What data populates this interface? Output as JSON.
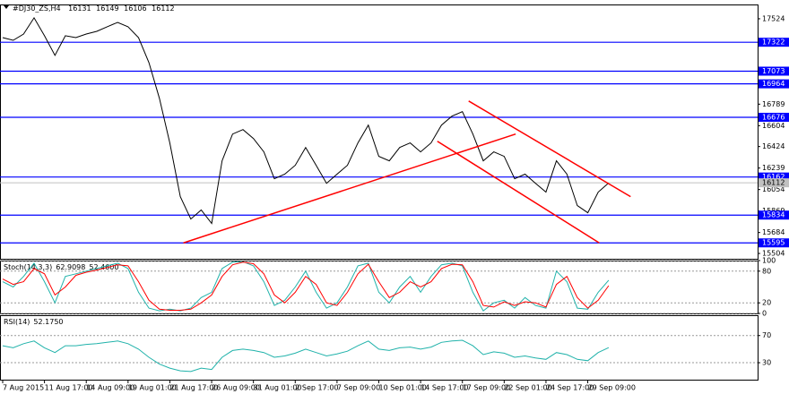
{
  "header": {
    "symbol": "#DJ30_ZS,H4",
    "ohlc": [
      16131,
      16149,
      16106,
      16112
    ]
  },
  "chart_data": [
    {
      "type": "line",
      "x": [
        0,
        1,
        2,
        3,
        4,
        5,
        6,
        7,
        8,
        9,
        10,
        11,
        12,
        13,
        14,
        15,
        16,
        17,
        18,
        19,
        20,
        21,
        22,
        23,
        24,
        25,
        26,
        27,
        28,
        29,
        30,
        31,
        32,
        33,
        34,
        35,
        36,
        37,
        38,
        39,
        40,
        41,
        42,
        43,
        44,
        45,
        46,
        47,
        48,
        49,
        50,
        51,
        52,
        53,
        54,
        55,
        56,
        57,
        58
      ],
      "values": [
        17362,
        17339,
        17393,
        17532,
        17378,
        17209,
        17378,
        17362,
        17393,
        17416,
        17455,
        17493,
        17455,
        17362,
        17147,
        16839,
        16455,
        15993,
        15800,
        15878,
        15762,
        16301,
        16532,
        16570,
        16493,
        16378,
        16147,
        16186,
        16263,
        16416,
        16263,
        16108,
        16186,
        16263,
        16455,
        16609,
        16340,
        16301,
        16416,
        16455,
        16378,
        16455,
        16609,
        16686,
        16724,
        16532,
        16301,
        16378,
        16340,
        16147,
        16186,
        16108,
        16032,
        16301,
        16186,
        15916,
        15854,
        16032,
        16112
      ],
      "color": "#000000",
      "xlim": [
        0,
        72
      ],
      "ylim": [
        15458,
        17647
      ],
      "yticks": [
        17524,
        16789,
        16604,
        16424,
        16239,
        16054,
        15869,
        15684,
        15504
      ],
      "levels": [
        17322,
        17073,
        16964,
        16676,
        16162,
        15834,
        15595
      ],
      "level_color": "#0000ff",
      "trendlines": [
        {
          "x": [
            17.3,
            49.1
          ],
          "y": [
            15595,
            16532
          ]
        },
        {
          "x": [
            44.6,
            60.1
          ],
          "y": [
            16816,
            15993
          ]
        },
        {
          "x": [
            41.6,
            57.1
          ],
          "y": [
            16470,
            15595
          ]
        }
      ],
      "trendline_color": "#ff0000",
      "xticks": [
        {
          "value": 0,
          "label": "7 Aug 2015"
        },
        {
          "value": 4,
          "label": "11 Aug 17:00"
        },
        {
          "value": 8,
          "label": "14 Aug 09:00"
        },
        {
          "value": 12,
          "label": "19 Aug 01:00"
        },
        {
          "value": 16,
          "label": "21 Aug 17:00"
        },
        {
          "value": 20,
          "label": "26 Aug 09:00"
        },
        {
          "value": 24,
          "label": "31 Aug 01:00"
        },
        {
          "value": 28,
          "label": "2 Sep 17:00"
        },
        {
          "value": 32,
          "label": "7 Sep 09:00"
        },
        {
          "value": 36,
          "label": "10 Sep 01:00"
        },
        {
          "value": 40,
          "label": "14 Sep 17:00"
        },
        {
          "value": 44,
          "label": "17 Sep 09:00"
        },
        {
          "value": 48,
          "label": "22 Sep 01:00"
        },
        {
          "value": 52,
          "label": "24 Sep 17:00"
        },
        {
          "value": 56,
          "label": "29 Sep 09:00"
        }
      ]
    },
    {
      "type": "line",
      "title": "Stoch(14,3,3)",
      "readout": [
        62.9098,
        {
          "value": 52.46,
          "label": "52.4600"
        }
      ],
      "x": [
        0,
        1,
        2,
        3,
        4,
        5,
        6,
        7,
        8,
        9,
        10,
        11,
        12,
        13,
        14,
        15,
        16,
        17,
        18,
        19,
        20,
        21,
        22,
        23,
        24,
        25,
        26,
        27,
        28,
        29,
        30,
        31,
        32,
        33,
        34,
        35,
        36,
        37,
        38,
        39,
        40,
        41,
        42,
        43,
        44,
        45,
        46,
        47,
        48,
        49,
        50,
        51,
        52,
        53,
        54,
        55,
        56,
        57,
        58
      ],
      "series": [
        {
          "color": "#20b2aa",
          "values": [
            60,
            50,
            70,
            95,
            60,
            20,
            70,
            75,
            80,
            85,
            90,
            95,
            85,
            40,
            10,
            5,
            8,
            5,
            10,
            30,
            40,
            85,
            97,
            98,
            90,
            60,
            15,
            25,
            50,
            80,
            40,
            10,
            20,
            50,
            90,
            95,
            40,
            20,
            50,
            70,
            40,
            70,
            92,
            95,
            90,
            40,
            5,
            20,
            25,
            10,
            30,
            15,
            10,
            80,
            60,
            10,
            8,
            40,
            62.9098
          ]
        },
        {
          "color": "#ff0000",
          "values": [
            65,
            55,
            60,
            85,
            75,
            35,
            50,
            72,
            78,
            82,
            87,
            92,
            90,
            60,
            25,
            8,
            6,
            6,
            8,
            20,
            35,
            70,
            92,
            97,
            94,
            75,
            35,
            20,
            40,
            70,
            55,
            20,
            15,
            40,
            75,
            93,
            60,
            30,
            40,
            60,
            50,
            60,
            85,
            93,
            92,
            60,
            15,
            12,
            22,
            15,
            22,
            20,
            12,
            55,
            70,
            30,
            10,
            25,
            52.46
          ]
        }
      ],
      "xlim": [
        0,
        72
      ],
      "ylim": [
        0,
        100
      ],
      "yticks": [
        0,
        20,
        80,
        100
      ],
      "grid_style": "dashed"
    },
    {
      "type": "line",
      "title": "RSI(14)",
      "readout": [
        {
          "value": 52.175,
          "label": "52.1750"
        }
      ],
      "x": [
        0,
        1,
        2,
        3,
        4,
        5,
        6,
        7,
        8,
        9,
        10,
        11,
        12,
        13,
        14,
        15,
        16,
        17,
        18,
        19,
        20,
        21,
        22,
        23,
        24,
        25,
        26,
        27,
        28,
        29,
        30,
        31,
        32,
        33,
        34,
        35,
        36,
        37,
        38,
        39,
        40,
        41,
        42,
        43,
        44,
        45,
        46,
        47,
        48,
        49,
        50,
        51,
        52,
        53,
        54,
        55,
        56,
        57,
        58
      ],
      "values": [
        55,
        52,
        58,
        62,
        52,
        45,
        55,
        55,
        57,
        58,
        60,
        62,
        58,
        50,
        38,
        28,
        22,
        18,
        17,
        22,
        20,
        38,
        48,
        50,
        48,
        45,
        38,
        40,
        44,
        50,
        45,
        40,
        43,
        47,
        55,
        62,
        50,
        48,
        52,
        53,
        50,
        53,
        60,
        62,
        63,
        55,
        42,
        46,
        44,
        38,
        40,
        37,
        35,
        45,
        42,
        35,
        33,
        45,
        52.175
      ],
      "color": "#20b2aa",
      "xlim": [
        0,
        72
      ],
      "ylim": [
        5,
        100
      ],
      "yticks": [
        30,
        70
      ],
      "grid_style": "dashed"
    }
  ]
}
